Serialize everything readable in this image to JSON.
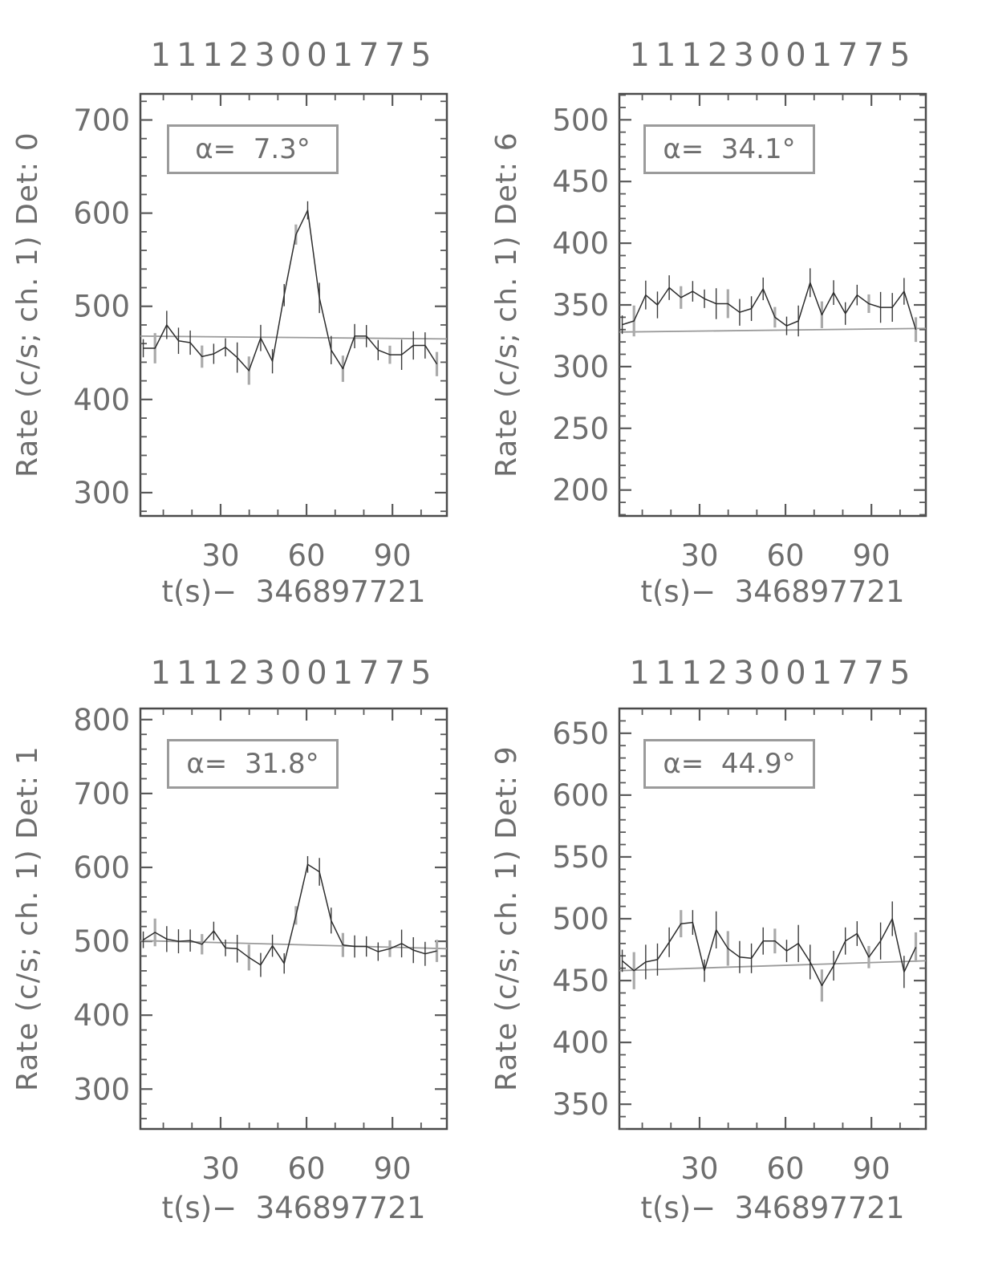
{
  "figure": {
    "kind": "four-panel gamma-ray burst detector light curves",
    "background": "#ffffff"
  },
  "colors": {
    "frame": "#4a4a4a",
    "tick": "#5a5a5a",
    "data_line": "#2d2d2d",
    "fit_line": "#9a9a9a",
    "error_dark": "#3a3a3a",
    "error_gray": "#aaaaaa",
    "text": "#6e6e6e",
    "box_border": "#9b9b9b"
  },
  "chart_data": [
    {
      "type": "line",
      "title": "11123001775",
      "ylabel": "Rate (c/s; ch. 1) Det: 0",
      "xlabel": "t(s)−  346897721",
      "alpha_label": "α=  7.3°",
      "detector": 0,
      "alpha_deg": 7.3,
      "xlim": [
        2,
        109
      ],
      "ylim": [
        275,
        728
      ],
      "xticks": [
        30,
        60,
        90
      ],
      "yticks": [
        300,
        400,
        500,
        600,
        700
      ],
      "x_minor_step": 10,
      "y_minor_step": 20,
      "x_start": 3,
      "x_step": 4.1,
      "values": [
        455,
        455,
        480,
        463,
        461,
        446,
        449,
        456,
        445,
        431,
        466,
        441,
        512,
        577,
        603,
        509,
        453,
        433,
        468,
        468,
        453,
        448,
        448,
        458,
        458,
        438
      ],
      "error_half": 13,
      "fit_line": [
        468,
        465
      ],
      "legend_position": "upper-left-box",
      "grid": false
    },
    {
      "type": "line",
      "title": "11123001775",
      "ylabel": "Rate (c/s; ch. 1) Det: 6",
      "xlabel": "t(s)−  346897721",
      "alpha_label": "α=  34.1°",
      "detector": 6,
      "alpha_deg": 34.1,
      "xlim": [
        2,
        109
      ],
      "ylim": [
        179,
        521
      ],
      "xticks": [
        30,
        60,
        90
      ],
      "yticks": [
        200,
        250,
        300,
        350,
        400,
        450,
        500
      ],
      "x_minor_step": 10,
      "y_minor_step": 10,
      "x_start": 3,
      "x_step": 4.1,
      "values": [
        334,
        337,
        358,
        350,
        364,
        356,
        361,
        355,
        351,
        351,
        344,
        347,
        363,
        340,
        333,
        337,
        368,
        342,
        360,
        343,
        358,
        351,
        348,
        348,
        361,
        330
      ],
      "error_half": 10,
      "fit_line": [
        328,
        331
      ],
      "legend_position": "upper-left-box",
      "grid": false
    },
    {
      "type": "line",
      "title": "11123001775",
      "ylabel": "Rate (c/s; ch. 1) Det: 1",
      "xlabel": "t(s)−  346897721",
      "alpha_label": "α=  31.8°",
      "detector": 1,
      "alpha_deg": 31.8,
      "xlim": [
        2,
        109
      ],
      "ylim": [
        246,
        815
      ],
      "xticks": [
        30,
        60,
        90
      ],
      "yticks": [
        300,
        400,
        500,
        600,
        700,
        800
      ],
      "x_minor_step": 10,
      "y_minor_step": 20,
      "x_start": 3,
      "x_step": 4.1,
      "values": [
        502,
        512,
        503,
        500,
        501,
        496,
        514,
        491,
        490,
        478,
        468,
        494,
        470,
        535,
        604,
        594,
        528,
        495,
        493,
        493,
        486,
        490,
        497,
        488,
        483,
        487
      ],
      "error_half": 15,
      "fit_line": [
        501,
        490
      ],
      "legend_position": "upper-left-box",
      "grid": false
    },
    {
      "type": "line",
      "title": "11123001775",
      "ylabel": "Rate (c/s; ch. 1) Det: 9",
      "xlabel": "t(s)−  346897721",
      "alpha_label": "α=  44.9°",
      "detector": 9,
      "alpha_deg": 44.9,
      "xlim": [
        2,
        109
      ],
      "ylim": [
        330,
        670
      ],
      "xticks": [
        30,
        60,
        90
      ],
      "yticks": [
        350,
        400,
        450,
        500,
        550,
        600,
        650
      ],
      "x_minor_step": 10,
      "y_minor_step": 10,
      "x_start": 3,
      "x_step": 4.1,
      "values": [
        466,
        458,
        465,
        467,
        481,
        496,
        497,
        458,
        491,
        476,
        469,
        468,
        482,
        482,
        474,
        480,
        465,
        446,
        462,
        482,
        488,
        469,
        482,
        500,
        457,
        477
      ],
      "error_half": 12,
      "fit_line": [
        458,
        466
      ],
      "legend_position": "upper-left-box",
      "grid": false
    }
  ]
}
